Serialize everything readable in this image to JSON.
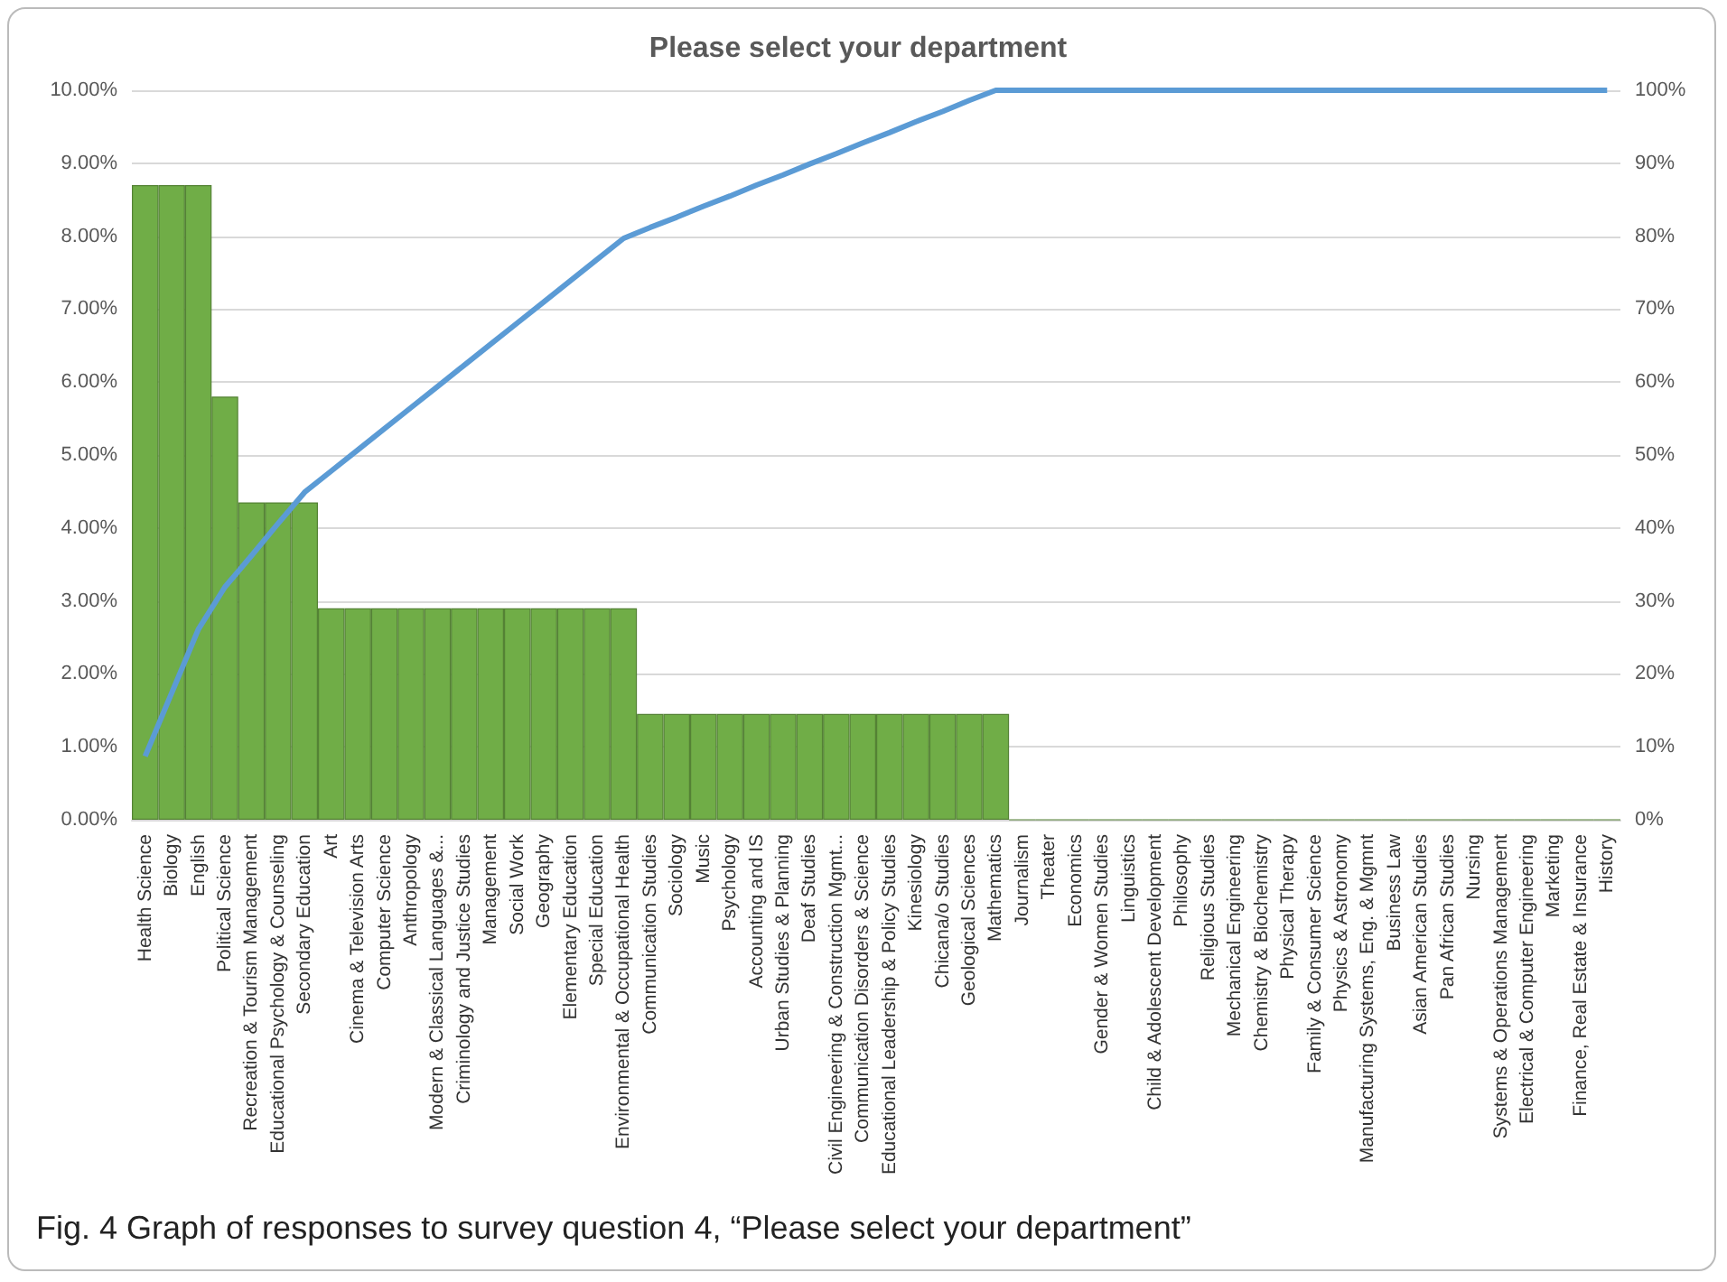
{
  "chart_data": {
    "type": "bar",
    "title": "Please select your department",
    "categories": [
      "Health Science",
      "Biology",
      "English",
      "Political Science",
      "Recreation & Tourism Management",
      "Educational Psychology & Counseling",
      "Secondary Education",
      "Art",
      "Cinema & Television Arts",
      "Computer Science",
      "Anthropology",
      "Modern & Classical Languages &...",
      "Criminology and Justice Studies",
      "Management",
      "Social Work",
      "Geography",
      "Elementary Education",
      "Special Education",
      "Environmental & Occupational Health",
      "Communication Studies",
      "Sociology",
      "Music",
      "Psychology",
      "Accounting and IS",
      "Urban Studies & Planning",
      "Deaf Studies",
      "Civil Engineering & Construction Mgmt...",
      "Communication Disorders & Science",
      "Educational Leadership & Policy Studies",
      "Kinesiology",
      "Chicana/o Studies",
      "Geological Sciences",
      "Mathematics",
      "Journalism",
      "Theater",
      "Economics",
      "Gender & Women Studies",
      "Linguistics",
      "Child & Adolescent Development",
      "Philosophy",
      "Religious Studies",
      "Mechanical Engineering",
      "Chemistry & Biochemistry",
      "Physical Therapy",
      "Family & Consumer Science",
      "Physics & Astronomy",
      "Manufacturing Systems, Eng. & Mgmnt",
      "Business Law",
      "Asian American Studies",
      "Pan African Studies",
      "Nursing",
      "Systems & Operations Management",
      "Electrical & Computer Engineering",
      "Marketing",
      "Finance, Real Estate & Insurance",
      "History"
    ],
    "series": [
      {
        "color": "#70ad47",
        "values": [
          8.7,
          8.7,
          8.7,
          5.8,
          4.35,
          4.35,
          4.35,
          2.9,
          2.9,
          2.9,
          2.9,
          2.9,
          2.9,
          2.9,
          2.9,
          2.9,
          2.9,
          2.9,
          2.9,
          1.45,
          1.45,
          1.45,
          1.45,
          1.45,
          1.45,
          1.45,
          1.45,
          1.45,
          1.45,
          1.45,
          1.45,
          1.45,
          1.45,
          0,
          0,
          0,
          0,
          0,
          0,
          0,
          0,
          0,
          0,
          0,
          0,
          0,
          0,
          0,
          0,
          0,
          0,
          0,
          0,
          0,
          0,
          0
        ]
      },
      {
        "type": "line",
        "axis": "y2",
        "color": "#5b9bd5",
        "values": [
          8.7,
          17.4,
          26.1,
          31.9,
          36.2,
          40.6,
          44.9,
          47.8,
          50.7,
          53.6,
          56.5,
          59.4,
          62.3,
          65.2,
          68.1,
          71.0,
          73.9,
          76.8,
          79.7,
          81.2,
          82.6,
          84.1,
          85.5,
          87.0,
          88.4,
          89.9,
          91.3,
          92.8,
          94.2,
          95.7,
          97.1,
          98.6,
          100,
          100,
          100,
          100,
          100,
          100,
          100,
          100,
          100,
          100,
          100,
          100,
          100,
          100,
          100,
          100,
          100,
          100,
          100,
          100,
          100,
          100,
          100,
          100
        ]
      }
    ],
    "ylim": [
      0,
      10
    ],
    "yticks": [
      {
        "value": 0,
        "label": "0.00%"
      },
      {
        "value": 1,
        "label": "1.00%"
      },
      {
        "value": 2,
        "label": "2.00%"
      },
      {
        "value": 3,
        "label": "3.00%"
      },
      {
        "value": 4,
        "label": "4.00%"
      },
      {
        "value": 5,
        "label": "5.00%"
      },
      {
        "value": 6,
        "label": "6.00%"
      },
      {
        "value": 7,
        "label": "7.00%"
      },
      {
        "value": 8,
        "label": "8.00%"
      },
      {
        "value": 9,
        "label": "9.00%"
      },
      {
        "value": 10,
        "label": "10.00%"
      }
    ],
    "y2lim": [
      0,
      100
    ],
    "y2ticks": [
      {
        "value": 0,
        "label": "0%"
      },
      {
        "value": 10,
        "label": "10%"
      },
      {
        "value": 20,
        "label": "20%"
      },
      {
        "value": 30,
        "label": "30%"
      },
      {
        "value": 40,
        "label": "40%"
      },
      {
        "value": 50,
        "label": "50%"
      },
      {
        "value": 60,
        "label": "60%"
      },
      {
        "value": 70,
        "label": "70%"
      },
      {
        "value": 80,
        "label": "80%"
      },
      {
        "value": 90,
        "label": "90%"
      },
      {
        "value": 100,
        "label": "100%"
      }
    ],
    "grid": "y",
    "marker": "none",
    "annotations": [
      "Fig. 4 Graph of responses to survey question 4, “Please select your department”"
    ]
  }
}
